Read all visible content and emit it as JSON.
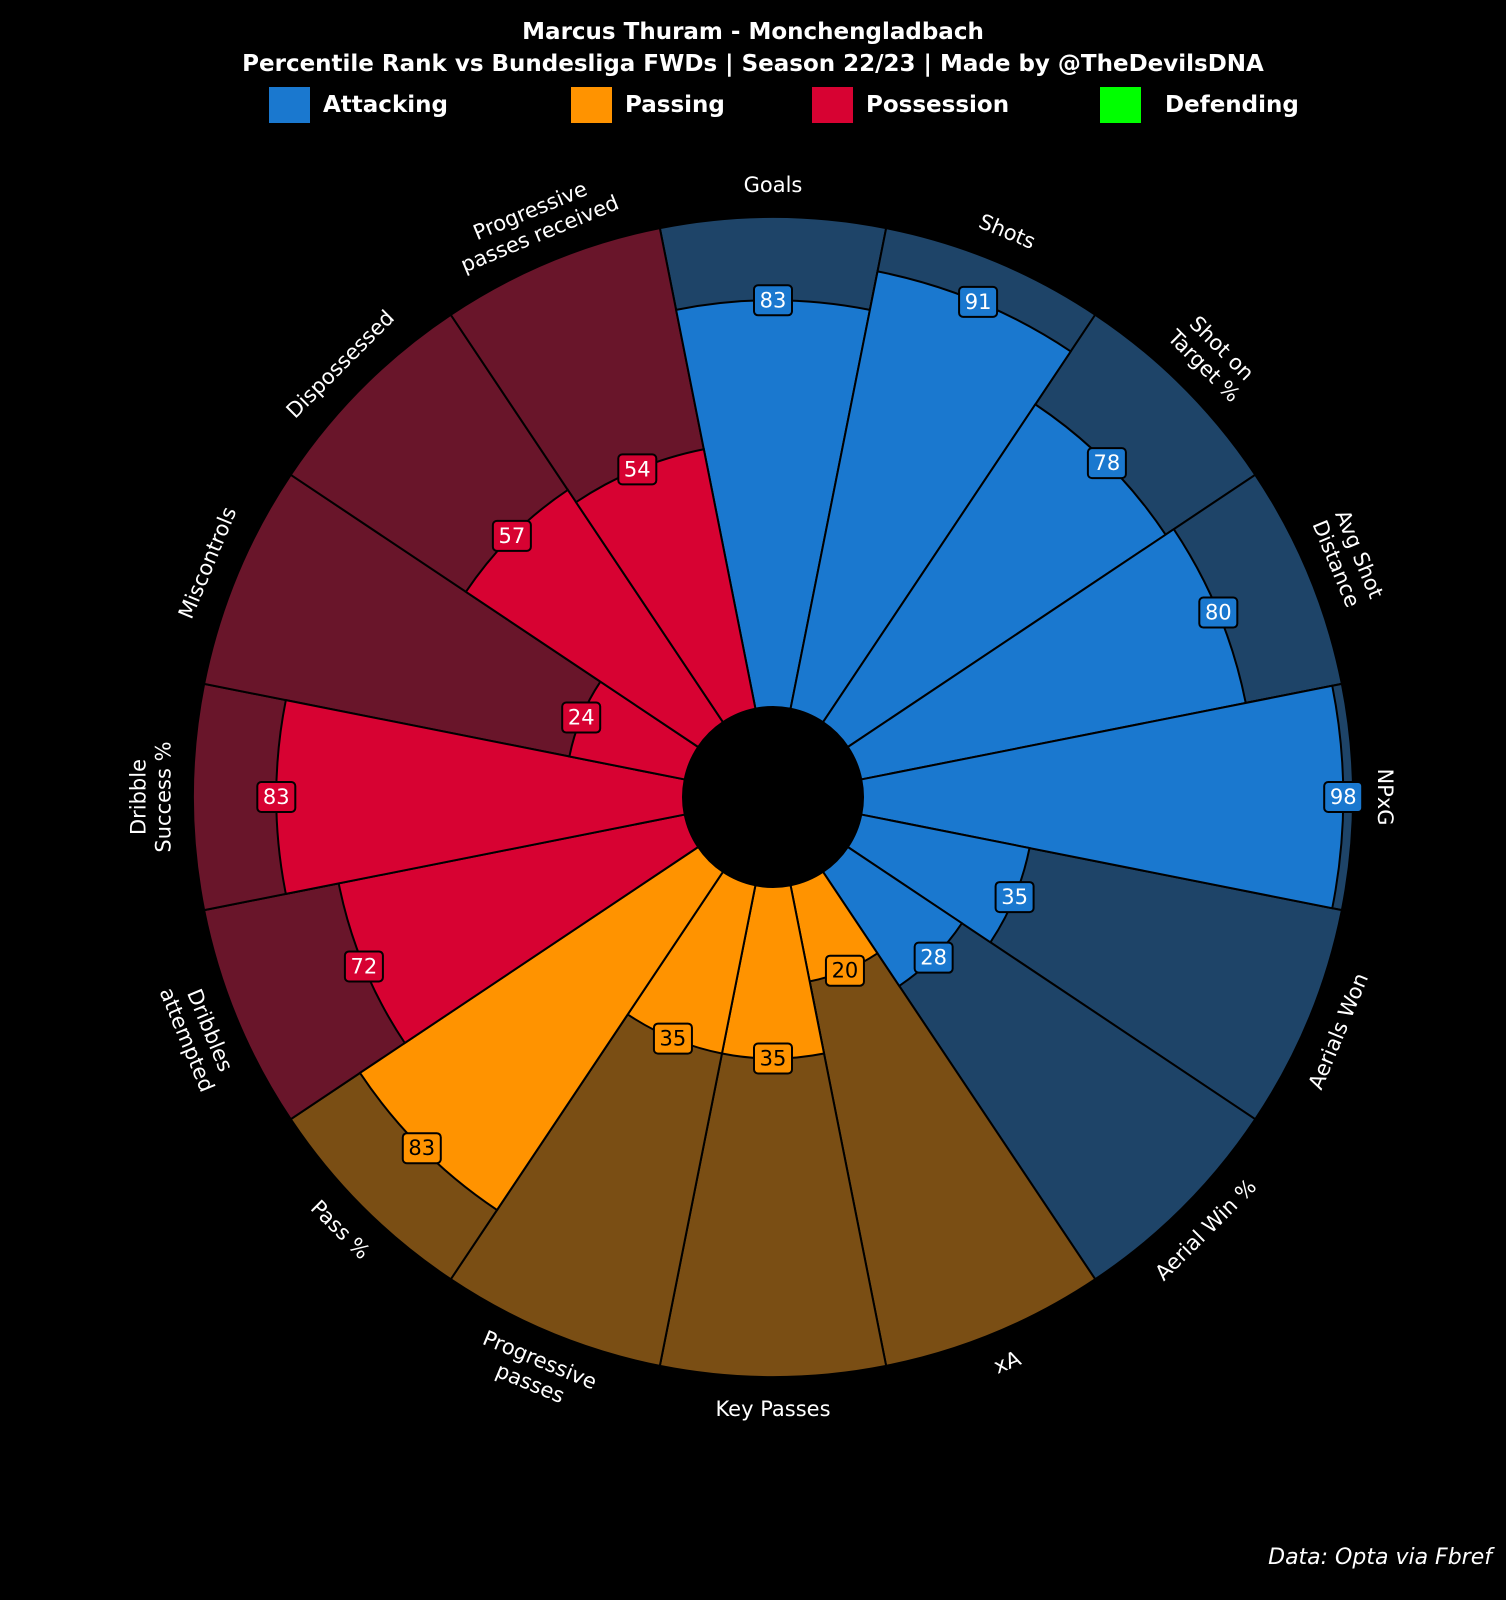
{
  "header": {
    "title": "Marcus Thuram - Monchengladbach",
    "subtitle": "Percentile Rank vs Bundesliga FWDs | Season 22/23 | Made by @TheDevilsDNA"
  },
  "legend": [
    {
      "label": "Attacking",
      "color": "#1a78cf"
    },
    {
      "label": "Passing",
      "color": "#ff9300"
    },
    {
      "label": "Possession",
      "color": "#d70232"
    },
    {
      "label": "Defending",
      "color": "#00ff00"
    }
  ],
  "footer": "Data: Opta via Fbref",
  "chart_data": {
    "type": "pizza",
    "value_range": [
      0,
      100
    ],
    "colors": {
      "Attacking": {
        "fill": "#1a78cf",
        "background": "#1e4468"
      },
      "Passing": {
        "fill": "#ff9300",
        "background": "#7a4e14"
      },
      "Possession": {
        "fill": "#d70232",
        "background": "#69152a"
      }
    },
    "slices": [
      {
        "label": "Goals",
        "value": 83,
        "group": "Attacking"
      },
      {
        "label": "Shots",
        "value": 91,
        "group": "Attacking"
      },
      {
        "label": "Shot on\nTarget %",
        "value": 78,
        "group": "Attacking"
      },
      {
        "label": "Avg Shot\nDistance",
        "value": 80,
        "group": "Attacking"
      },
      {
        "label": "NPxG",
        "value": 98,
        "group": "Attacking"
      },
      {
        "label": "Aerials Won",
        "value": 35,
        "group": "Attacking"
      },
      {
        "label": "Aerial Win %",
        "value": 28,
        "group": "Attacking"
      },
      {
        "label": "xA",
        "value": 20,
        "group": "Passing"
      },
      {
        "label": "Key Passes",
        "value": 35,
        "group": "Passing"
      },
      {
        "label": "Progressive\npasses",
        "value": 35,
        "group": "Passing"
      },
      {
        "label": "Pass %",
        "value": 83,
        "group": "Passing"
      },
      {
        "label": "Dribbles\nattempted",
        "value": 72,
        "group": "Possession"
      },
      {
        "label": "Dribble\nSuccess %",
        "value": 83,
        "group": "Possession"
      },
      {
        "label": "Miscontrols",
        "value": 24,
        "group": "Possession"
      },
      {
        "label": "Dispossessed",
        "value": 57,
        "group": "Possession"
      },
      {
        "label": "Progressive\npasses received",
        "value": 54,
        "group": "Possession"
      }
    ]
  }
}
